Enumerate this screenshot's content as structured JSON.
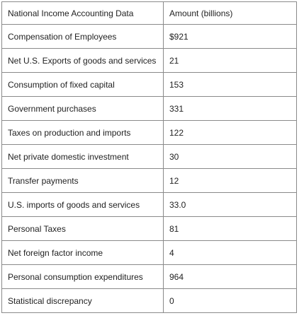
{
  "table": {
    "headers": [
      "National Income Accounting Data",
      "Amount (billions)"
    ],
    "rows": [
      [
        "Compensation of Employees",
        "$921"
      ],
      [
        "Net U.S. Exports of goods and services",
        "21"
      ],
      [
        "Consumption of fixed capital",
        "153"
      ],
      [
        "Government purchases",
        "331"
      ],
      [
        "Taxes on production and imports",
        "122"
      ],
      [
        "Net private domestic investment",
        "30"
      ],
      [
        "Transfer payments",
        "12"
      ],
      [
        "U.S. imports of goods and services",
        "33.0"
      ],
      [
        "Personal Taxes",
        "81"
      ],
      [
        "Net foreign factor income",
        "4"
      ],
      [
        "Personal consumption expenditures",
        "964"
      ],
      [
        "Statistical discrepancy",
        "0"
      ]
    ]
  }
}
